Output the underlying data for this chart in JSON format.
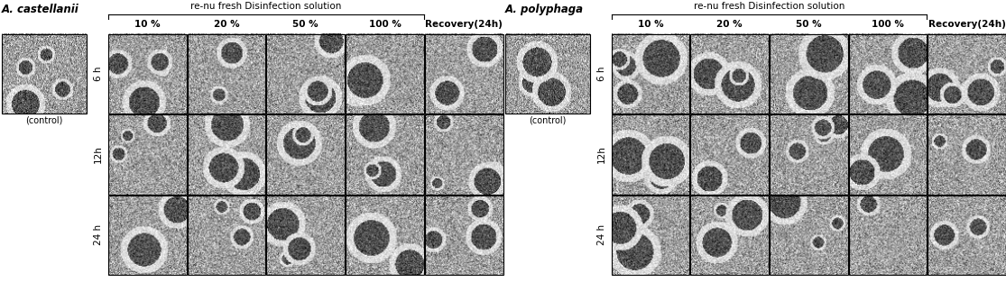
{
  "bg_color": "#ffffff",
  "panel_left": {
    "species_label": "A. castellanii",
    "control_label": "(control)",
    "header_main": "re-nu fresh Disinfection solution",
    "col_labels": [
      "10 %",
      "20 %",
      "50 %",
      "100 %",
      "Recovery(24h)"
    ],
    "row_labels": [
      "6 h",
      "12h",
      "24 h"
    ]
  },
  "panel_right": {
    "species_label": "A. polyphaga",
    "control_label": "(control)",
    "header_main": "re-nu fresh Disinfection solution",
    "col_labels": [
      "10 %",
      "20 %",
      "50 %",
      "100 %",
      "Recovery(24h)"
    ],
    "row_labels": [
      "6 h",
      "12h",
      "24 h"
    ]
  },
  "cell_color_mean": 160,
  "cell_color_std": 40,
  "header_fontsize": 7.5,
  "col_label_fontsize": 7.5,
  "row_label_fontsize": 7.5,
  "species_fontsize": 8.5,
  "control_fontsize": 7.0,
  "fig_width": 11.15,
  "fig_height": 3.13,
  "dpi": 100
}
